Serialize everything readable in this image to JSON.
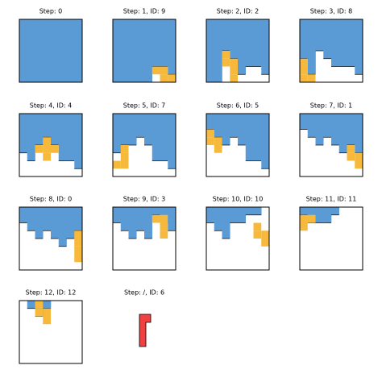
{
  "panels": [
    {
      "title": "Step: 0"
    },
    {
      "title": "Step: 1, ID: 9"
    },
    {
      "title": "Step: 2, ID: 2"
    },
    {
      "title": "Step: 3, ID: 8"
    },
    {
      "title": "Step: 4, ID: 4"
    },
    {
      "title": "Step: 5, ID: 7"
    },
    {
      "title": "Step: 6, ID: 5"
    },
    {
      "title": "Step: 7, ID: 1"
    },
    {
      "title": "Step: 8, ID: 0"
    },
    {
      "title": "Step: 9, ID: 3"
    },
    {
      "title": "Step: 10, ID: 10"
    },
    {
      "title": "Step: 11, ID: 11"
    },
    {
      "title": "Step: 12, ID: 12"
    },
    {
      "title": "Step: /, ID: 6"
    }
  ]
}
